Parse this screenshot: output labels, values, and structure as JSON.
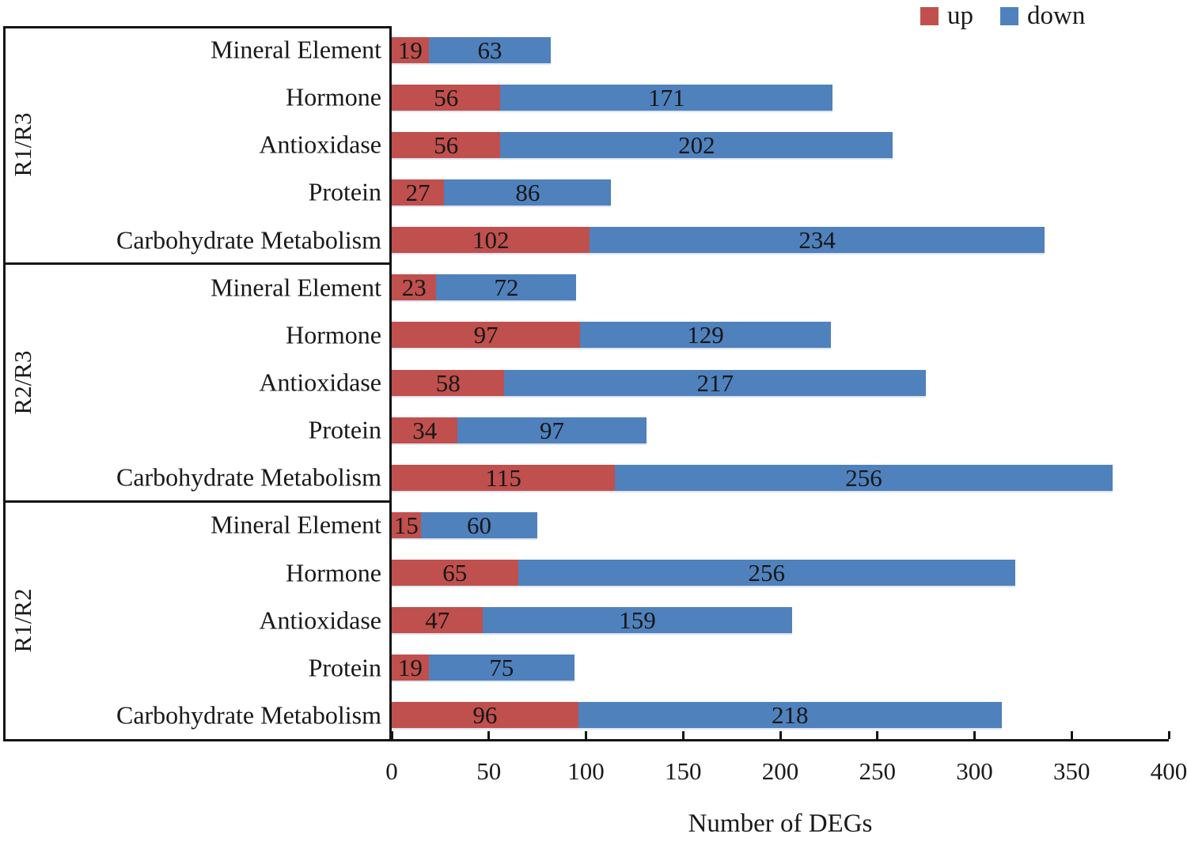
{
  "chart_data": {
    "type": "bar",
    "orientation": "horizontal",
    "stacked": true,
    "title": "",
    "xlabel": "Number of DEGs",
    "ylabel": "",
    "xlim": [
      0,
      400
    ],
    "xticks": [
      0,
      50,
      100,
      150,
      200,
      250,
      300,
      350,
      400
    ],
    "grid": false,
    "legend_position": "top-right",
    "legend": [
      {
        "name": "up",
        "color": "#C0504D"
      },
      {
        "name": "down",
        "color": "#4F81BD"
      }
    ],
    "groups": [
      {
        "label": "R1/R3",
        "rows": [
          {
            "category": "Mineral Element",
            "up": 19,
            "down": 63
          },
          {
            "category": "Hormone",
            "up": 56,
            "down": 171
          },
          {
            "category": "Antioxidase",
            "up": 56,
            "down": 202
          },
          {
            "category": "Protein",
            "up": 27,
            "down": 86
          },
          {
            "category": "Carbohydrate Metabolism",
            "up": 102,
            "down": 234
          }
        ]
      },
      {
        "label": "R2/R3",
        "rows": [
          {
            "category": "Mineral Element",
            "up": 23,
            "down": 72
          },
          {
            "category": "Hormone",
            "up": 97,
            "down": 129
          },
          {
            "category": "Antioxidase",
            "up": 58,
            "down": 217
          },
          {
            "category": "Protein",
            "up": 34,
            "down": 97
          },
          {
            "category": "Carbohydrate Metabolism",
            "up": 115,
            "down": 256
          }
        ]
      },
      {
        "label": "R1/R2",
        "rows": [
          {
            "category": "Mineral Element",
            "up": 15,
            "down": 60
          },
          {
            "category": "Hormone",
            "up": 65,
            "down": 256
          },
          {
            "category": "Antioxidase",
            "up": 47,
            "down": 159
          },
          {
            "category": "Protein",
            "up": 19,
            "down": 75
          },
          {
            "category": "Carbohydrate Metabolism",
            "up": 96,
            "down": 218
          }
        ]
      }
    ]
  }
}
